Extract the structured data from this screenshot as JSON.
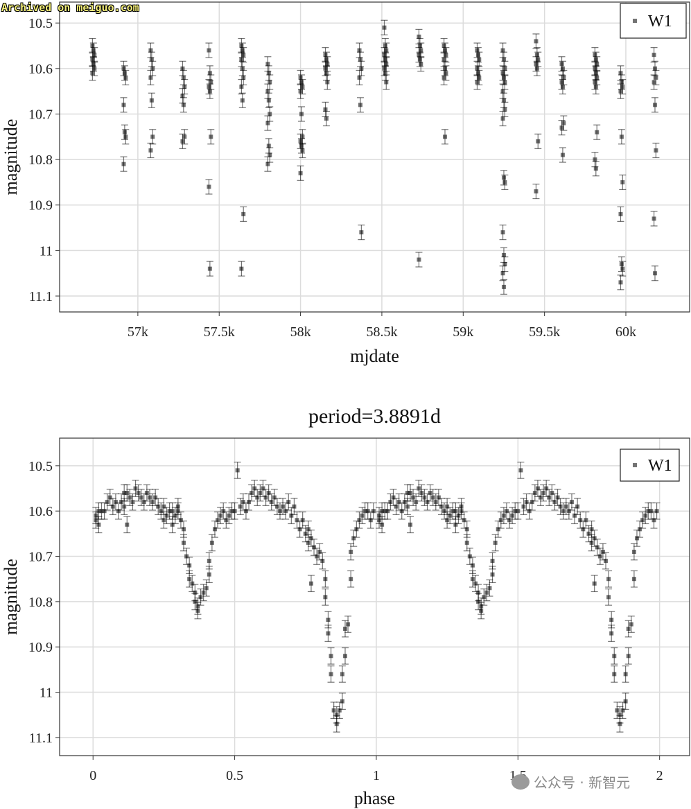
{
  "watermarks": {
    "top": "Archived on meiguo.com",
    "bottom": "公众号 · 新智元"
  },
  "chart_data": [
    {
      "type": "scatter",
      "title": "",
      "xlabel": "mjdate",
      "ylabel": "magnitude",
      "xlim": [
        56519,
        60392
      ],
      "ylim": [
        11.135,
        10.454
      ],
      "y_inverted": true,
      "grid": true,
      "legend": {
        "position": "top-right",
        "entries": [
          "W1"
        ]
      },
      "xticks": [
        {
          "v": 57000,
          "label": "57k"
        },
        {
          "v": 57500,
          "label": "57.5k"
        },
        {
          "v": 58000,
          "label": "58k"
        },
        {
          "v": 58500,
          "label": "58.5k"
        },
        {
          "v": 59000,
          "label": "59k"
        },
        {
          "v": 59500,
          "label": "59.5k"
        },
        {
          "v": 60000,
          "label": "60k"
        }
      ],
      "yticks": [
        {
          "v": 10.5,
          "label": "10.5"
        },
        {
          "v": 10.6,
          "label": "10.6"
        },
        {
          "v": 10.7,
          "label": "10.7"
        },
        {
          "v": 10.8,
          "label": "10.8"
        },
        {
          "v": 10.9,
          "label": "10.9"
        },
        {
          "v": 11.0,
          "label": "11"
        },
        {
          "v": 11.1,
          "label": "11.1"
        }
      ],
      "error": 0.016,
      "series": [
        {
          "name": "W1",
          "clusters": [
            {
              "mjd": 56727,
              "mags": [
                10.55,
                10.56,
                10.57,
                10.58,
                10.59,
                10.6,
                10.61
              ]
            },
            {
              "mjd": 56919,
              "mags": [
                10.6,
                10.61,
                10.62,
                10.68,
                10.74,
                10.75,
                10.81
              ]
            },
            {
              "mjd": 57085,
              "mags": [
                10.56,
                10.58,
                10.6,
                10.62,
                10.67,
                10.75,
                10.78
              ]
            },
            {
              "mjd": 57281,
              "mags": [
                10.6,
                10.62,
                10.64,
                10.66,
                10.68,
                10.75,
                10.76
              ]
            },
            {
              "mjd": 57443,
              "mags": [
                10.56,
                10.61,
                10.63,
                10.64,
                10.65,
                10.75,
                10.86,
                11.04
              ]
            },
            {
              "mjd": 57643,
              "mags": [
                10.55,
                10.56,
                10.57,
                10.58,
                10.6,
                10.62,
                10.64,
                10.67,
                10.92,
                11.04
              ]
            },
            {
              "mjd": 57805,
              "mags": [
                10.59,
                10.61,
                10.63,
                10.65,
                10.67,
                10.7,
                10.72,
                10.77,
                10.79,
                10.81
              ]
            },
            {
              "mjd": 58006,
              "mags": [
                10.62,
                10.63,
                10.64,
                10.65,
                10.7,
                10.75,
                10.76,
                10.77,
                10.78,
                10.83
              ]
            },
            {
              "mjd": 58159,
              "mags": [
                10.57,
                10.58,
                10.59,
                10.6,
                10.61,
                10.63,
                10.69,
                10.71
              ]
            },
            {
              "mjd": 58368,
              "mags": [
                10.56,
                10.58,
                10.6,
                10.62,
                10.68,
                10.96
              ]
            },
            {
              "mjd": 58521,
              "mags": [
                10.51,
                10.55,
                10.56,
                10.57,
                10.58,
                10.59,
                10.6,
                10.61,
                10.63
              ]
            },
            {
              "mjd": 58734,
              "mags": [
                10.53,
                10.55,
                10.56,
                10.57,
                10.58,
                10.59,
                11.02
              ]
            },
            {
              "mjd": 58888,
              "mags": [
                10.55,
                10.56,
                10.57,
                10.58,
                10.6,
                10.61,
                10.62,
                10.75
              ]
            },
            {
              "mjd": 59092,
              "mags": [
                10.56,
                10.57,
                10.58,
                10.6,
                10.61,
                10.62,
                10.63
              ]
            },
            {
              "mjd": 59250,
              "mags": [
                10.56,
                10.58,
                10.6,
                10.61,
                10.62,
                10.63,
                10.65,
                10.67,
                10.69,
                10.71,
                10.84,
                10.85,
                10.96,
                11.01,
                11.03,
                11.05,
                11.08
              ]
            },
            {
              "mjd": 59454,
              "mags": [
                10.54,
                10.57,
                10.58,
                10.59,
                10.6,
                10.76,
                10.87
              ]
            },
            {
              "mjd": 59612,
              "mags": [
                10.59,
                10.6,
                10.62,
                10.63,
                10.64,
                10.72,
                10.73,
                10.79
              ]
            },
            {
              "mjd": 59816,
              "mags": [
                10.57,
                10.58,
                10.59,
                10.6,
                10.61,
                10.62,
                10.63,
                10.64,
                10.74,
                10.8,
                10.82
              ]
            },
            {
              "mjd": 59974,
              "mags": [
                10.61,
                10.63,
                10.64,
                10.65,
                10.75,
                10.85,
                10.92,
                11.03,
                11.04,
                11.07
              ]
            },
            {
              "mjd": 60179,
              "mags": [
                10.57,
                10.6,
                10.62,
                10.63,
                10.68,
                10.78,
                10.93,
                11.05
              ]
            }
          ]
        }
      ]
    },
    {
      "type": "scatter",
      "title": "period=3.8891d",
      "xlabel": "phase",
      "ylabel": "magnitude",
      "xlim": [
        -0.118,
        2.106
      ],
      "ylim": [
        11.14,
        10.439
      ],
      "y_inverted": true,
      "grid": true,
      "legend": {
        "position": "top-right",
        "entries": [
          "W1"
        ]
      },
      "xticks": [
        {
          "v": 0,
          "label": "0"
        },
        {
          "v": 0.5,
          "label": "0.5"
        },
        {
          "v": 1,
          "label": "1"
        },
        {
          "v": 1.5,
          "label": "1.5"
        },
        {
          "v": 2,
          "label": "2"
        }
      ],
      "yticks": [
        {
          "v": 10.5,
          "label": "10.5"
        },
        {
          "v": 10.6,
          "label": "10.6"
        },
        {
          "v": 10.7,
          "label": "10.7"
        },
        {
          "v": 10.8,
          "label": "10.8"
        },
        {
          "v": 10.9,
          "label": "10.9"
        },
        {
          "v": 11.0,
          "label": "11"
        },
        {
          "v": 11.1,
          "label": "11.1"
        }
      ],
      "error": 0.018,
      "phase_repeats": 2,
      "series": [
        {
          "name": "W1",
          "points": [
            [
              0.01,
              10.62
            ],
            [
              0.01,
              10.61
            ],
            [
              0.02,
              10.6
            ],
            [
              0.02,
              10.63
            ],
            [
              0.03,
              10.6
            ],
            [
              0.04,
              10.6
            ],
            [
              0.05,
              10.58
            ],
            [
              0.06,
              10.57
            ],
            [
              0.07,
              10.59
            ],
            [
              0.08,
              10.58
            ],
            [
              0.09,
              10.6
            ],
            [
              0.1,
              10.58
            ],
            [
              0.11,
              10.59
            ],
            [
              0.11,
              10.56
            ],
            [
              0.12,
              10.56
            ],
            [
              0.12,
              10.63
            ],
            [
              0.13,
              10.57
            ],
            [
              0.14,
              10.58
            ],
            [
              0.15,
              10.55
            ],
            [
              0.16,
              10.56
            ],
            [
              0.17,
              10.57
            ],
            [
              0.18,
              10.58
            ],
            [
              0.19,
              10.56
            ],
            [
              0.2,
              10.57
            ],
            [
              0.21,
              10.58
            ],
            [
              0.22,
              10.57
            ],
            [
              0.23,
              10.59
            ],
            [
              0.24,
              10.6
            ],
            [
              0.25,
              10.59
            ],
            [
              0.25,
              10.62
            ],
            [
              0.26,
              10.61
            ],
            [
              0.27,
              10.6
            ],
            [
              0.28,
              10.6
            ],
            [
              0.28,
              10.63
            ],
            [
              0.29,
              10.61
            ],
            [
              0.3,
              10.6
            ],
            [
              0.3,
              10.59
            ],
            [
              0.31,
              10.62
            ],
            [
              0.32,
              10.64
            ],
            [
              0.32,
              10.67
            ],
            [
              0.33,
              10.7
            ],
            [
              0.34,
              10.72
            ],
            [
              0.34,
              10.75
            ],
            [
              0.35,
              10.76
            ],
            [
              0.36,
              10.78
            ],
            [
              0.36,
              10.8
            ],
            [
              0.37,
              10.81
            ],
            [
              0.37,
              10.82
            ],
            [
              0.38,
              10.79
            ],
            [
              0.39,
              10.78
            ],
            [
              0.4,
              10.77
            ],
            [
              0.41,
              10.74
            ],
            [
              0.41,
              10.71
            ],
            [
              0.42,
              10.67
            ],
            [
              0.43,
              10.64
            ],
            [
              0.44,
              10.62
            ],
            [
              0.45,
              10.61
            ],
            [
              0.46,
              10.6
            ],
            [
              0.47,
              10.62
            ],
            [
              0.48,
              10.61
            ],
            [
              0.49,
              10.6
            ],
            [
              0.5,
              10.6
            ],
            [
              0.51,
              10.51
            ],
            [
              0.52,
              10.59
            ],
            [
              0.53,
              10.58
            ],
            [
              0.54,
              10.6
            ],
            [
              0.55,
              10.58
            ],
            [
              0.56,
              10.56
            ],
            [
              0.57,
              10.55
            ],
            [
              0.58,
              10.57
            ],
            [
              0.59,
              10.56
            ],
            [
              0.6,
              10.55
            ],
            [
              0.61,
              10.57
            ],
            [
              0.62,
              10.56
            ],
            [
              0.63,
              10.58
            ],
            [
              0.64,
              10.57
            ],
            [
              0.65,
              10.59
            ],
            [
              0.66,
              10.6
            ],
            [
              0.67,
              10.59
            ],
            [
              0.68,
              10.6
            ],
            [
              0.69,
              10.58
            ],
            [
              0.7,
              10.61
            ],
            [
              0.71,
              10.59
            ],
            [
              0.72,
              10.62
            ],
            [
              0.73,
              10.64
            ],
            [
              0.74,
              10.62
            ],
            [
              0.75,
              10.65
            ],
            [
              0.76,
              10.64
            ],
            [
              0.76,
              10.67
            ],
            [
              0.77,
              10.66
            ],
            [
              0.77,
              10.76
            ],
            [
              0.78,
              10.68
            ],
            [
              0.79,
              10.7
            ],
            [
              0.8,
              10.69
            ],
            [
              0.81,
              10.71
            ],
            [
              0.82,
              10.75
            ],
            [
              0.82,
              10.79
            ],
            [
              0.83,
              10.84
            ],
            [
              0.83,
              10.87
            ],
            [
              0.84,
              10.92
            ],
            [
              0.84,
              10.96
            ],
            [
              0.85,
              11.04
            ],
            [
              0.86,
              11.05
            ],
            [
              0.86,
              11.07
            ],
            [
              0.87,
              11.04
            ],
            [
              0.88,
              11.02
            ],
            [
              0.88,
              10.96
            ],
            [
              0.89,
              10.92
            ],
            [
              0.89,
              10.86
            ],
            [
              0.9,
              10.85
            ],
            [
              0.91,
              10.75
            ],
            [
              0.91,
              10.69
            ],
            [
              0.92,
              10.66
            ],
            [
              0.93,
              10.64
            ],
            [
              0.94,
              10.62
            ],
            [
              0.95,
              10.61
            ],
            [
              0.96,
              10.6
            ],
            [
              0.97,
              10.6
            ],
            [
              0.98,
              10.62
            ],
            [
              0.99,
              10.6
            ]
          ]
        }
      ]
    }
  ]
}
